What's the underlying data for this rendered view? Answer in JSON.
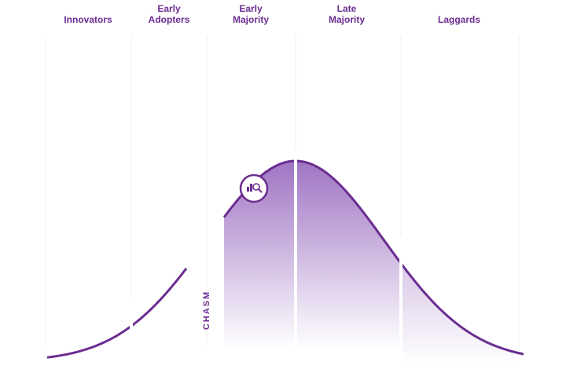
{
  "stages": [
    "Innovators",
    "Early Adopters",
    "Early Majority",
    "Late Majority",
    "Laggards"
  ],
  "chasm_label": "CHASM"
}
